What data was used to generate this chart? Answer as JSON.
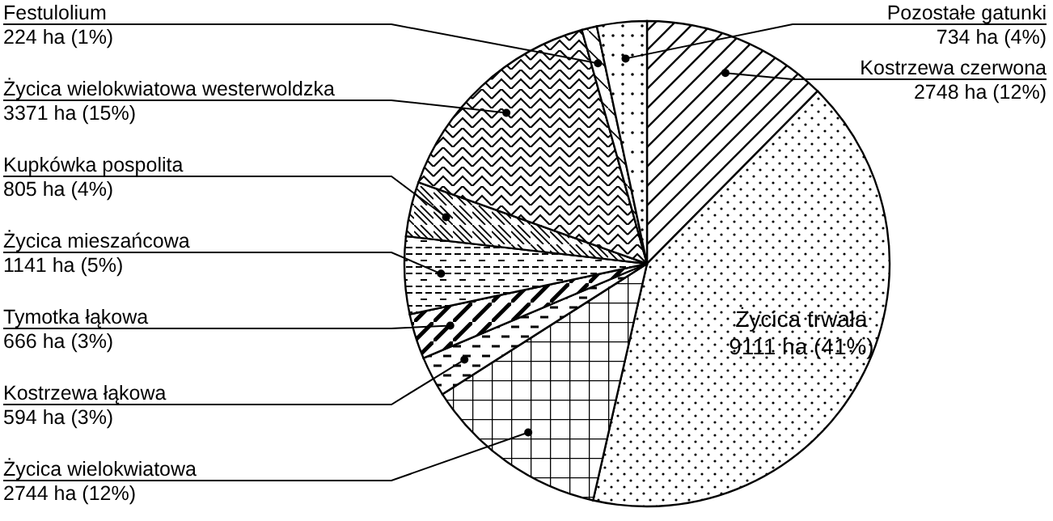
{
  "chart_data": {
    "type": "pie",
    "categories": [
      "Kostrzewa czerwona",
      "Życica trwała",
      "Życica wielokwiatowa",
      "Kostrzewa łąkowa",
      "Tymotka łąkowa",
      "Życica mieszańcowa",
      "Kupkówka pospolita",
      "Życica wielokwiatowa westerwoldzka",
      "Festulolium",
      "Pozostałe gatunki"
    ],
    "values": [
      2748,
      9111,
      2744,
      594,
      666,
      1141,
      805,
      3371,
      224,
      734
    ],
    "value_labels": [
      "2748 ha (12%)",
      "9111 ha (41%)",
      "2744 ha (12%)",
      "594 ha (3%)",
      "666 ha (3%)",
      "1141 ha (5%)",
      "805 ha (4%)",
      "3371 ha (15%)",
      "224 ha (1%)",
      "734 ha (4%)"
    ]
  }
}
